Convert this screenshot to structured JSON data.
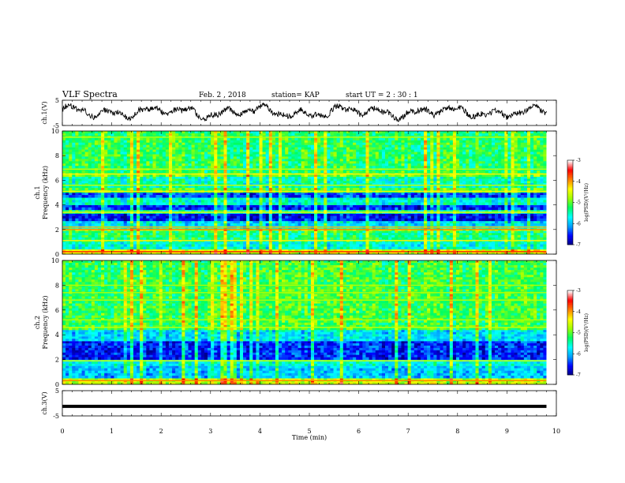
{
  "header": {
    "title": "VLF Spectra",
    "date": "Feb. 2 , 2018",
    "station": "station= KAP",
    "start_time": "start UT = 2 : 30 : 1"
  },
  "chart_data": [
    {
      "type": "line",
      "name": "ch1-waveform",
      "ylabel": "ch.1(V)",
      "ylim": [
        -5,
        5
      ],
      "y_ticks": [
        "5",
        "-5"
      ],
      "xlim": [
        0,
        10
      ],
      "x_end": 9.8,
      "series_color": "#000000"
    },
    {
      "type": "heatmap",
      "name": "ch1-spectrogram",
      "ylabel": "ch.1\nFrequency (kHz)",
      "xlim": [
        0,
        10
      ],
      "x_end": 9.8,
      "ylim": [
        0,
        10
      ],
      "y_ticks": [
        "0",
        "2",
        "4",
        "6",
        "8",
        "10"
      ],
      "bands": [
        {
          "from": 0.0,
          "to": 0.4,
          "value": -4.5
        },
        {
          "from": 0.4,
          "to": 1.0,
          "value": -5.6
        },
        {
          "from": 1.0,
          "to": 1.9,
          "value": -5.3
        },
        {
          "from": 1.9,
          "to": 2.1,
          "value": -4.7
        },
        {
          "from": 2.1,
          "to": 2.7,
          "value": -5.8
        },
        {
          "from": 2.7,
          "to": 3.3,
          "value": -6.6
        },
        {
          "from": 3.3,
          "to": 3.6,
          "value": -5.4
        },
        {
          "from": 3.6,
          "to": 4.0,
          "value": -6.5
        },
        {
          "from": 4.0,
          "to": 4.6,
          "value": -5.6
        },
        {
          "from": 4.6,
          "to": 5.0,
          "value": -6.4
        },
        {
          "from": 5.0,
          "to": 5.4,
          "value": -5.0
        },
        {
          "from": 5.4,
          "to": 6.3,
          "value": -5.5
        },
        {
          "from": 6.3,
          "to": 6.6,
          "value": -4.9
        },
        {
          "from": 6.6,
          "to": 10.0,
          "value": -5.2
        }
      ],
      "lines": [
        {
          "freq": 0.2,
          "value": -3.6
        },
        {
          "freq": 1.1,
          "value": -4.3
        },
        {
          "freq": 2.0,
          "value": -3.9
        },
        {
          "freq": 2.2,
          "value": -4.1
        },
        {
          "freq": 3.4,
          "value": -4.4
        },
        {
          "freq": 5.1,
          "value": -4.4
        },
        {
          "freq": 5.6,
          "value": -4.6
        },
        {
          "freq": 6.5,
          "value": -4.3
        },
        {
          "freq": 6.9,
          "value": -4.6
        },
        {
          "freq": 9.5,
          "value": -4.6
        }
      ]
    },
    {
      "type": "heatmap",
      "name": "ch2-spectrogram",
      "ylabel": "ch.2\nFrequency (kHz)",
      "xlim": [
        0,
        10
      ],
      "x_end": 9.8,
      "ylim": [
        0,
        10
      ],
      "y_ticks": [
        "0",
        "2",
        "4",
        "6",
        "8",
        "10"
      ],
      "bands": [
        {
          "from": 0.0,
          "to": 0.5,
          "value": -4.6
        },
        {
          "from": 0.5,
          "to": 1.5,
          "value": -5.9
        },
        {
          "from": 1.5,
          "to": 2.0,
          "value": -5.6
        },
        {
          "from": 2.0,
          "to": 3.5,
          "value": -6.5
        },
        {
          "from": 3.5,
          "to": 4.4,
          "value": -5.8
        },
        {
          "from": 4.4,
          "to": 10.0,
          "value": -5.1
        }
      ],
      "lines": [
        {
          "freq": 0.3,
          "value": -3.9
        },
        {
          "freq": 1.9,
          "value": -4.5
        },
        {
          "freq": 4.6,
          "value": -4.6
        },
        {
          "freq": 5.2,
          "value": -4.7
        },
        {
          "freq": 6.8,
          "value": -4.7
        },
        {
          "freq": 7.4,
          "value": -4.7
        },
        {
          "freq": 8.0,
          "value": -4.7
        }
      ]
    },
    {
      "type": "line",
      "name": "ch3-waveform",
      "ylabel": "ch.3(V)",
      "ylim": [
        -5,
        5
      ],
      "y_ticks": [
        "5",
        "-5"
      ],
      "xlim": [
        0,
        10
      ],
      "x_end": 9.8,
      "constant_value": -1.2
    }
  ],
  "x_axis": {
    "label": "Time (min)",
    "ticks": [
      "0",
      "1",
      "2",
      "3",
      "4",
      "5",
      "6",
      "7",
      "8",
      "9",
      "10"
    ]
  },
  "colorbars": [
    {
      "label": "log(PSD)(V²/Hz)",
      "ticks": [
        "-3",
        "-4",
        "-5",
        "-6",
        "-7"
      ],
      "range": [
        -7,
        -3
      ]
    },
    {
      "label": "log(PSD)(V²/Hz)",
      "ticks": [
        "-3",
        "-4",
        "-5",
        "-6",
        "-7"
      ],
      "range": [
        -7,
        -3
      ]
    }
  ],
  "colors": {
    "scale": [
      "#000080",
      "#0000ff",
      "#00a0ff",
      "#00ffff",
      "#00ff60",
      "#a0ff00",
      "#ffff00",
      "#ff8000",
      "#ff0000",
      "#ffffff"
    ]
  }
}
